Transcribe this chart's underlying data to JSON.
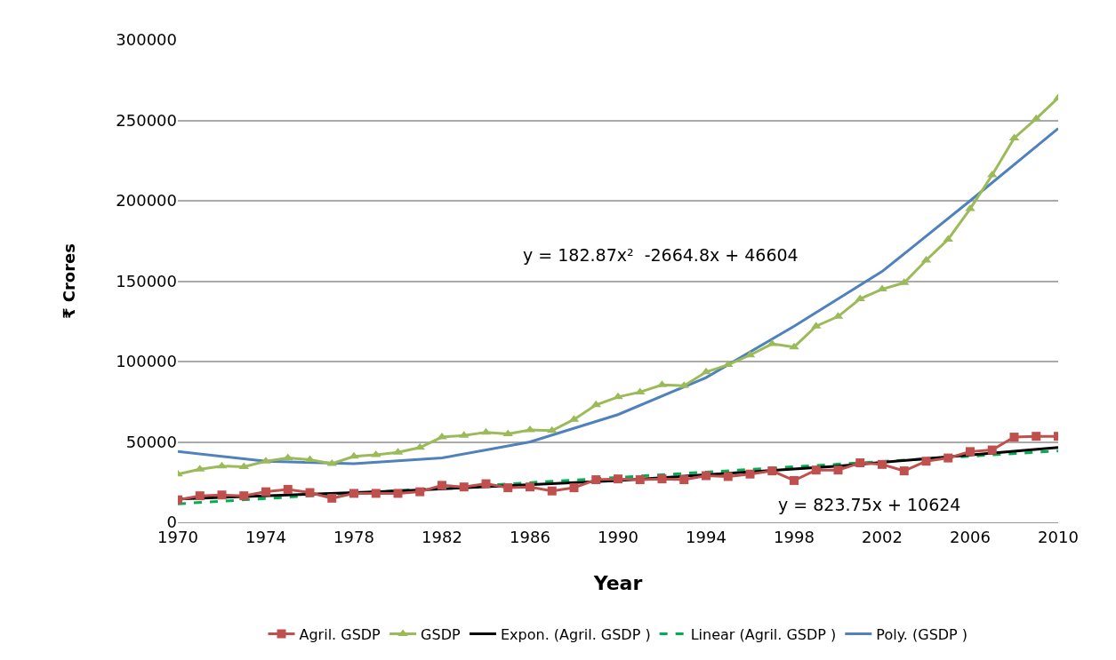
{
  "chart_data": {
    "type": "line",
    "xlabel": "Year",
    "ylabel": "₹ Crores",
    "x": [
      1970,
      1971,
      1972,
      1973,
      1974,
      1975,
      1976,
      1977,
      1978,
      1979,
      1980,
      1981,
      1982,
      1983,
      1984,
      1985,
      1986,
      1987,
      1988,
      1989,
      1990,
      1991,
      1992,
      1993,
      1994,
      1995,
      1996,
      1997,
      1998,
      1999,
      2000,
      2001,
      2002,
      2003,
      2004,
      2005,
      2006,
      2007,
      2008,
      2009,
      2010
    ],
    "xlim": [
      1970,
      2010
    ],
    "xticks": [
      1970,
      1974,
      1978,
      1982,
      1986,
      1990,
      1994,
      1998,
      2002,
      2006,
      2010
    ],
    "ylim": [
      0,
      300000
    ],
    "yticks": [
      0,
      50000,
      100000,
      150000,
      200000,
      250000,
      300000
    ],
    "grid": "y",
    "legend": "bottom",
    "annotations": [
      "y = 182.87x²  -2664.8x + 46604",
      "y = 823.75x + 10624"
    ],
    "series": [
      {
        "name": "Agril. GSDP",
        "color": "#c0504d",
        "marker": "square",
        "values": [
          14000,
          16500,
          17000,
          16500,
          19000,
          20500,
          18500,
          15000,
          18000,
          18000,
          18000,
          19000,
          23000,
          22000,
          24000,
          21500,
          22000,
          19500,
          21500,
          26500,
          27000,
          26500,
          27000,
          26500,
          29000,
          28500,
          30000,
          32000,
          26000,
          32500,
          32500,
          37000,
          36000,
          32000,
          38000,
          40000,
          44000,
          45000,
          53000,
          53500,
          53500
        ]
      },
      {
        "name": "GSDP",
        "color": "#9bbb59",
        "marker": "triangle",
        "values": [
          30000,
          33000,
          35000,
          34500,
          38000,
          40000,
          39000,
          36500,
          41000,
          42000,
          43500,
          46500,
          53000,
          54000,
          56000,
          55000,
          57500,
          57000,
          64000,
          73000,
          78000,
          81000,
          85500,
          85000,
          93500,
          98000,
          104000,
          111000,
          109000,
          122000,
          128000,
          139000,
          145000,
          149000,
          163000,
          176000,
          195000,
          216000,
          239000,
          251000,
          264000
        ]
      },
      {
        "name": "Expon. (Agril. GSDP )",
        "color": "#000000",
        "marker": "none",
        "x": [
          1970,
          1980,
          1990,
          2000,
          2010
        ],
        "values": [
          14500,
          19500,
          26000,
          35000,
          46500
        ]
      },
      {
        "name": "Linear (Agril. GSDP )",
        "color": "#00b050",
        "marker": "none",
        "line_style": "dashed",
        "x": [
          1970,
          2010
        ],
        "values": [
          11500,
          44400
        ]
      },
      {
        "name": "Poly. (GSDP )",
        "color": "#4f81bd",
        "marker": "none",
        "x": [
          1970,
          1974,
          1978,
          1982,
          1986,
          1990,
          1994,
          1998,
          2002,
          2006,
          2010
        ],
        "values": [
          44000,
          38000,
          36500,
          40000,
          50000,
          67000,
          90000,
          122000,
          156000,
          200000,
          245000
        ]
      }
    ]
  }
}
